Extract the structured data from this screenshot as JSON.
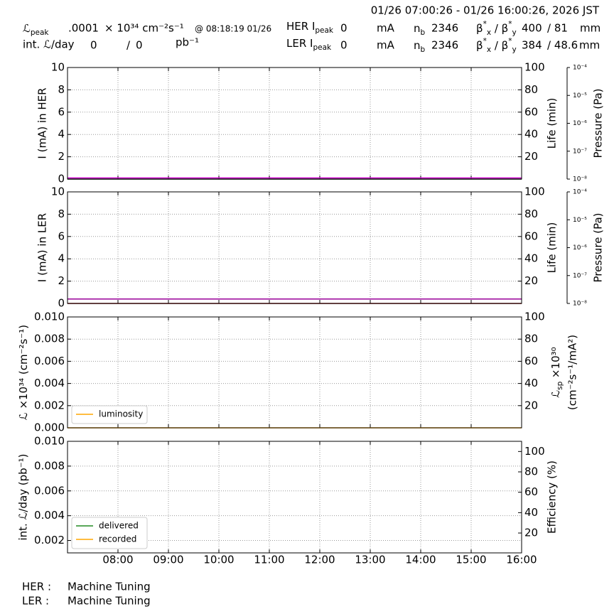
{
  "header": {
    "range": "01/26 07:00:26 - 01/26 16:00:26, 2026 JST",
    "lum_peak_label": [
      {
        "t": "ℒ"
      },
      {
        "sub": "peak"
      }
    ],
    "lum_peak_value": ".0001",
    "lum_peak_unit": "× 10³⁴ cm⁻²s⁻¹",
    "lum_peak_time": "@ 08:18:19 01/26",
    "her_label": [
      {
        "t": "HER I"
      },
      {
        "sub": "peak"
      }
    ],
    "her_current": "0",
    "her_unit": "mA",
    "her_nb_label": [
      {
        "t": "n"
      },
      {
        "sub": "b"
      }
    ],
    "her_nb": "2346",
    "her_beta_label": [
      {
        "t": "β"
      },
      {
        "sup": "*"
      },
      {
        "sub": "x"
      },
      {
        "t": " / β"
      },
      {
        "sup": "*"
      },
      {
        "sub": "y"
      }
    ],
    "her_beta_x": "400",
    "her_beta_y": "/ 81",
    "her_beta_unit": "mm",
    "int_label": "int. ℒ/day",
    "int_delivered": "0",
    "int_sep": "/",
    "int_recorded": "0",
    "int_unit": "pb⁻¹",
    "ler_label": [
      {
        "t": "LER I"
      },
      {
        "sub": "peak"
      }
    ],
    "ler_current": "0",
    "ler_unit": "mA",
    "ler_nb_label": [
      {
        "t": "n"
      },
      {
        "sub": "b"
      }
    ],
    "ler_nb": "2346",
    "ler_beta_label": [
      {
        "t": "β"
      },
      {
        "sup": "*"
      },
      {
        "sub": "x"
      },
      {
        "t": " / β"
      },
      {
        "sup": "*"
      },
      {
        "sub": "y"
      }
    ],
    "ler_beta_x": "384",
    "ler_beta_y": "/ 48.6",
    "ler_beta_unit": "mm"
  },
  "footer": {
    "her_label": "HER :",
    "her_status": "Machine Tuning",
    "ler_label": "LER :",
    "ler_status": "Machine Tuning"
  },
  "chart_data": [
    {
      "type": "line",
      "ylabel": "I (mA) in HER",
      "y2label": "Life (min)",
      "plabel": "Pressure (Pa)",
      "xlim": [
        7,
        16
      ],
      "ylim": [
        0,
        10
      ],
      "yticks": [
        0,
        2,
        4,
        6,
        8,
        10
      ],
      "y2lim": [
        0,
        100
      ],
      "y2ticks": [
        20,
        40,
        60,
        80,
        100
      ],
      "plim": [
        1e-08,
        0.0001
      ],
      "plog": true,
      "pticks": [
        {
          "value": 1e-08,
          "label": "10⁻⁸"
        },
        {
          "value": 1e-07,
          "label": "10⁻⁷"
        },
        {
          "value": 1e-06,
          "label": "10⁻⁶"
        },
        {
          "value": 1e-05,
          "label": "10⁻⁵"
        },
        {
          "value": 0.0001,
          "label": "10⁻⁴"
        }
      ],
      "grid": true,
      "series": [
        {
          "color": "#cc00cc",
          "x": [
            7,
            16
          ],
          "values": [
            0.1,
            0.1
          ]
        },
        {
          "color": "#000000",
          "x": [
            7,
            16
          ],
          "values": [
            0,
            0
          ]
        }
      ]
    },
    {
      "type": "line",
      "ylabel": "I (mA) in LER",
      "y2label": "Life (min)",
      "plabel": "Pressure (Pa)",
      "xlim": [
        7,
        16
      ],
      "ylim": [
        0,
        10
      ],
      "yticks": [
        0,
        2,
        4,
        6,
        8,
        10
      ],
      "y2lim": [
        0,
        100
      ],
      "y2ticks": [
        20,
        40,
        60,
        80,
        100
      ],
      "plim": [
        1e-08,
        0.0001
      ],
      "plog": true,
      "pticks": [
        {
          "value": 1e-08,
          "label": "10⁻⁸"
        },
        {
          "value": 1e-07,
          "label": "10⁻⁷"
        },
        {
          "value": 1e-06,
          "label": "10⁻⁶"
        },
        {
          "value": 1e-05,
          "label": "10⁻⁵"
        },
        {
          "value": 0.0001,
          "label": "10⁻⁴"
        }
      ],
      "grid": true,
      "series": [
        {
          "color": "#990099",
          "x": [
            7,
            16
          ],
          "values": [
            0.4,
            0.4
          ]
        },
        {
          "color": "#8b0000",
          "x": [
            7,
            16
          ],
          "values": [
            0,
            0
          ]
        }
      ]
    },
    {
      "type": "line",
      "ylabel": [
        {
          "t": "ℒ ×10³⁴ (cm⁻²s⁻¹)"
        }
      ],
      "y2label": [
        {
          "t": "ℒ"
        },
        {
          "sub": "sp"
        },
        {
          "t": " ×10³⁰"
        }
      ],
      "y2label2": "(cm⁻²s⁻¹/mA²)",
      "xlim": [
        7,
        16
      ],
      "ylim": [
        0,
        0.01
      ],
      "yticks": [
        {
          "value": 0,
          "label": "0.000"
        },
        {
          "value": 0.002,
          "label": "0.002"
        },
        {
          "value": 0.004,
          "label": "0.004"
        },
        {
          "value": 0.006,
          "label": "0.006"
        },
        {
          "value": 0.008,
          "label": "0.008"
        },
        {
          "value": 0.01,
          "label": "0.010"
        }
      ],
      "y2lim": [
        0,
        100
      ],
      "y2ticks": [
        20,
        40,
        60,
        80,
        100
      ],
      "grid": true,
      "legend": "lower left",
      "series": [
        {
          "name": "luminosity",
          "color": "#ffa500",
          "x": [
            7,
            16
          ],
          "values": [
            0,
            0
          ]
        }
      ]
    },
    {
      "type": "line",
      "ylabel": "int. ℒ/day (pb⁻¹)",
      "y2label": "Efficiency (%)",
      "xlim": [
        7,
        16
      ],
      "ylim": [
        0.001,
        0.01
      ],
      "yticks": [
        0.002,
        0.004,
        0.006,
        {
          "value": 0.008,
          "label": "0.008"
        },
        {
          "value": 0.01,
          "label": "0.010"
        }
      ],
      "y2lim": [
        0.5,
        110
      ],
      "y2ticks": [
        20,
        40,
        60,
        80,
        100
      ],
      "xticks": [
        {
          "value": 8,
          "label": "08:00"
        },
        {
          "value": 9,
          "label": "09:00"
        },
        {
          "value": 10,
          "label": "10:00"
        },
        {
          "value": 11,
          "label": "11:00"
        },
        {
          "value": 12,
          "label": "12:00"
        },
        {
          "value": 13,
          "label": "13:00"
        },
        {
          "value": 14,
          "label": "14:00"
        },
        {
          "value": 15,
          "label": "15:00"
        },
        {
          "value": 16,
          "label": "16:00"
        }
      ],
      "grid": true,
      "legend": "lower left",
      "series": [
        {
          "name": "delivered",
          "color": "#228b22",
          "x": [],
          "values": []
        },
        {
          "name": "recorded",
          "color": "#ffa500",
          "x": [],
          "values": []
        }
      ]
    }
  ]
}
